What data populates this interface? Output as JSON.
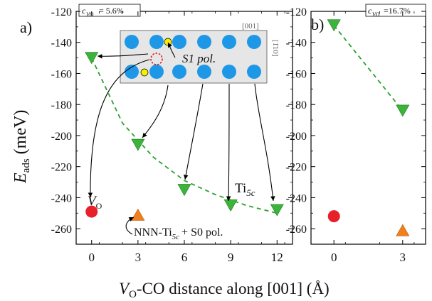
{
  "colors": {
    "triangle_down": "#3cb43c",
    "triangle_up": "#f07f1c",
    "circle": "#e8202a",
    "fit_line": "#2ca02c",
    "inset_bg": "#e6e6e6",
    "atom_blue": "#1e98e6",
    "atom_yellow": "#f5f000",
    "vacancy": "#e01010"
  },
  "labels": {
    "ylabel_main": "E",
    "ylabel_sub": "ads",
    "ylabel_unit": " (meV)",
    "xlabel_v": "V",
    "xlabel_o": "O",
    "xlabel_rest": "-CO distance along [001] (Å)"
  },
  "chart_data": [
    {
      "type": "scatter",
      "panel_label": "a)",
      "concentration": "c",
      "concentration_sub": "VO",
      "concentration_value": " = 5.6%",
      "x_ticks": [
        0,
        3,
        6,
        9,
        12
      ],
      "y_ticks": [
        -120,
        -140,
        -160,
        -180,
        -200,
        -220,
        -240,
        -260
      ],
      "xlim": [
        -1,
        13
      ],
      "ylim": [
        -270,
        -120
      ],
      "series": [
        {
          "name": "Ti5c",
          "marker": "triangle-down",
          "x": [
            0,
            3,
            6,
            9,
            12
          ],
          "y": [
            -150,
            -206,
            -235,
            -245,
            -248
          ]
        },
        {
          "name": "VO",
          "marker": "circle",
          "x": [
            0
          ],
          "y": [
            -249
          ]
        },
        {
          "name": "NNN-Ti5c + S0 pol.",
          "marker": "triangle-up",
          "x": [
            3
          ],
          "y": [
            -251
          ]
        }
      ],
      "fit_curve": {
        "style": "dashed",
        "x": [
          0,
          2,
          4,
          6,
          8,
          10,
          12
        ],
        "y": [
          -150,
          -192,
          -214,
          -229,
          -238,
          -245,
          -250
        ]
      },
      "annotations": {
        "ti5c": "Ti",
        "ti5c_sub": "5c",
        "vo": "V",
        "vo_sub": "O",
        "nnn": "NNN-Ti",
        "nnn_sub": "5c",
        "nnn_rest": "+ S0 pol.",
        "s1": "S1 pol.",
        "dir_001": "[001]",
        "dir_110": "[1̄10]"
      }
    },
    {
      "type": "scatter",
      "panel_label": "b)",
      "concentration": "c",
      "concentration_sub": "VO",
      "concentration_value": "=16.7%",
      "x_ticks": [
        0,
        3
      ],
      "y_ticks": [
        -120,
        -140,
        -160,
        -180,
        -200,
        -220,
        -240,
        -260
      ],
      "xlim": [
        -1,
        4
      ],
      "ylim": [
        -270,
        -120
      ],
      "series": [
        {
          "name": "Ti5c",
          "marker": "triangle-down",
          "x": [
            0,
            3
          ],
          "y": [
            -129,
            -184
          ]
        },
        {
          "name": "VO",
          "marker": "circle",
          "x": [
            0
          ],
          "y": [
            -252
          ]
        },
        {
          "name": "NNN-Ti5c + S0 pol.",
          "marker": "triangle-up",
          "x": [
            3
          ],
          "y": [
            -261
          ]
        }
      ],
      "fit_curve": {
        "style": "dashed",
        "x": [
          0,
          3
        ],
        "y": [
          -129,
          -184
        ]
      }
    }
  ]
}
